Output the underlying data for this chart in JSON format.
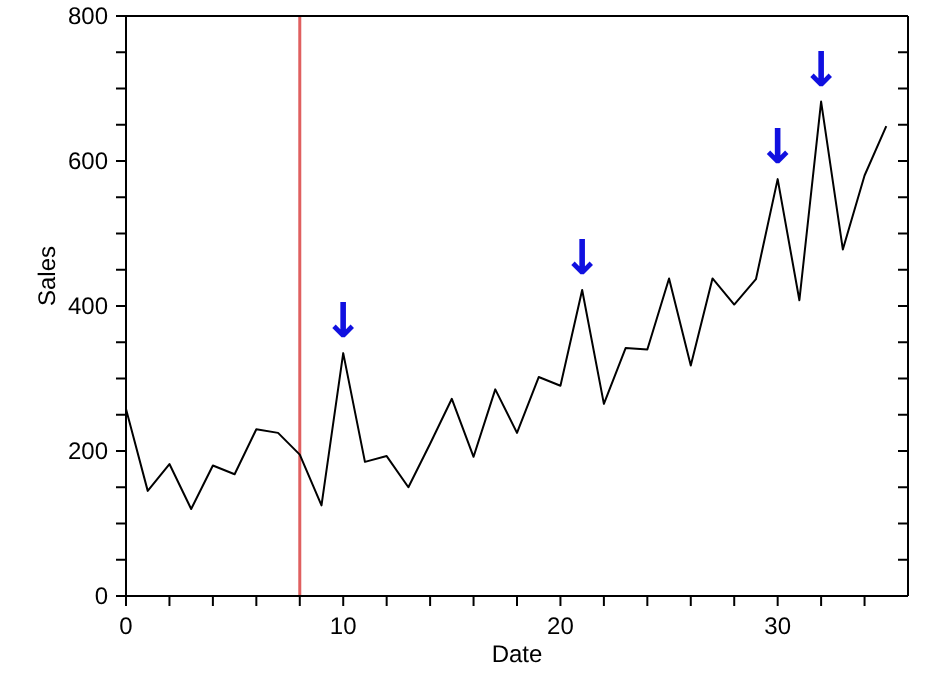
{
  "chart_data": {
    "type": "line",
    "xlabel": "Date",
    "ylabel": "Sales",
    "x": [
      0,
      1,
      2,
      3,
      4,
      5,
      6,
      7,
      8,
      9,
      10,
      11,
      12,
      13,
      14,
      15,
      16,
      17,
      18,
      19,
      20,
      21,
      22,
      23,
      24,
      25,
      26,
      27,
      28,
      29,
      30,
      31,
      32,
      33,
      34,
      35
    ],
    "series": [
      {
        "color": "#000000",
        "values": [
          258,
          145,
          182,
          120,
          180,
          168,
          230,
          225,
          195,
          125,
          335,
          185,
          193,
          150,
          210,
          272,
          192,
          285,
          225,
          302,
          290,
          422,
          265,
          342,
          340,
          438,
          318,
          438,
          402,
          437,
          575,
          408,
          682,
          478,
          580,
          648
        ]
      }
    ],
    "xlim": [
      0,
      36
    ],
    "xticks": [
      0,
      {
        "value": 2,
        "label": null
      },
      {
        "value": 4,
        "label": null
      },
      {
        "value": 6,
        "label": null
      },
      {
        "value": 8,
        "label": null
      },
      10,
      {
        "value": 12,
        "label": null
      },
      {
        "value": 14,
        "label": null
      },
      {
        "value": 16,
        "label": null
      },
      {
        "value": 18,
        "label": null
      },
      20,
      {
        "value": 22,
        "label": null
      },
      {
        "value": 24,
        "label": null
      },
      {
        "value": 26,
        "label": null
      },
      {
        "value": 28,
        "label": null
      },
      30,
      {
        "value": 32,
        "label": null
      },
      {
        "value": 34,
        "label": null
      }
    ],
    "ylim": [
      0,
      800
    ],
    "yticks": [
      0,
      {
        "value": 50,
        "label": null
      },
      {
        "value": 100,
        "label": null
      },
      {
        "value": 150,
        "label": null
      },
      200,
      {
        "value": 250,
        "label": null
      },
      {
        "value": 300,
        "label": null
      },
      {
        "value": 350,
        "label": null
      },
      400,
      {
        "value": 450,
        "label": null
      },
      {
        "value": 500,
        "label": null
      },
      {
        "value": 550,
        "label": null
      },
      600,
      {
        "value": 650,
        "label": null
      },
      {
        "value": 700,
        "label": null
      },
      {
        "value": 750,
        "label": null
      },
      800
    ],
    "ref_lines": [
      {
        "axis": "x",
        "value": 8,
        "color": "#e06060"
      }
    ],
    "annotations": [
      {
        "text": "↓",
        "x": 10,
        "y": 335
      },
      {
        "text": "↓",
        "x": 21,
        "y": 422
      },
      {
        "text": "↓",
        "x": 30,
        "y": 575
      },
      {
        "text": "↓",
        "x": 32,
        "y": 682
      }
    ],
    "marker": "none",
    "line_style": "solid"
  }
}
